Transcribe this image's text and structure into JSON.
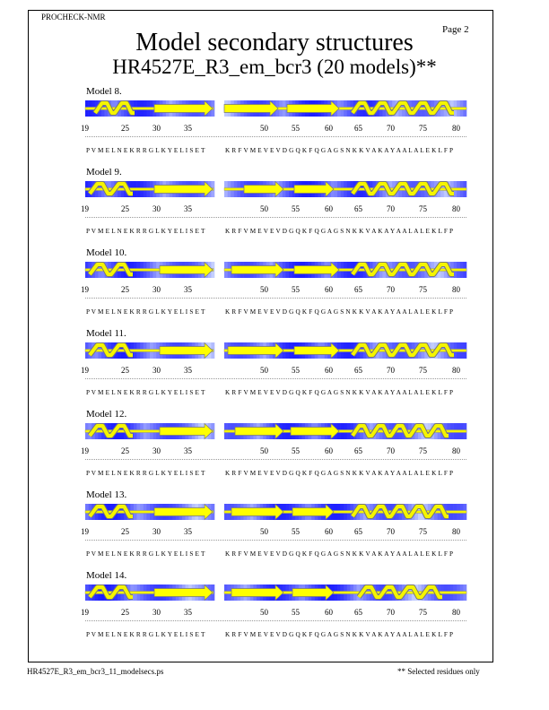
{
  "header": {
    "program": "PROCHECK-NMR",
    "page_label": "Page 2",
    "title": "Model secondary structures",
    "subtitle": "HR4527E_R3_em_bcr3 (20 models)**"
  },
  "residue_numbers": [
    "19",
    "25",
    "30",
    "35",
    "50",
    "55",
    "60",
    "65",
    "70",
    "75",
    "80"
  ],
  "sequence_part1": "P V M E L N E K R R G L K Y E L I S E T",
  "sequence_part2": "K R F V M E V E V D G Q K F Q G A G S N K K V A K A Y A A L A L E K L F P",
  "models": [
    {
      "label": "Model 8."
    },
    {
      "label": "Model 9."
    },
    {
      "label": "Model 10."
    },
    {
      "label": "Model 11."
    },
    {
      "label": "Model 12."
    },
    {
      "label": "Model 13."
    },
    {
      "label": "Model 14."
    }
  ],
  "colors": {
    "helix": "#f5f500",
    "strand": "#ffff00",
    "shade_dark": "#2020e0",
    "shade_light": "#e8ecff"
  },
  "footer": {
    "filename": "HR4527E_R3_em_bcr3_11_modelsecs.ps",
    "note": "** Selected residues only"
  }
}
